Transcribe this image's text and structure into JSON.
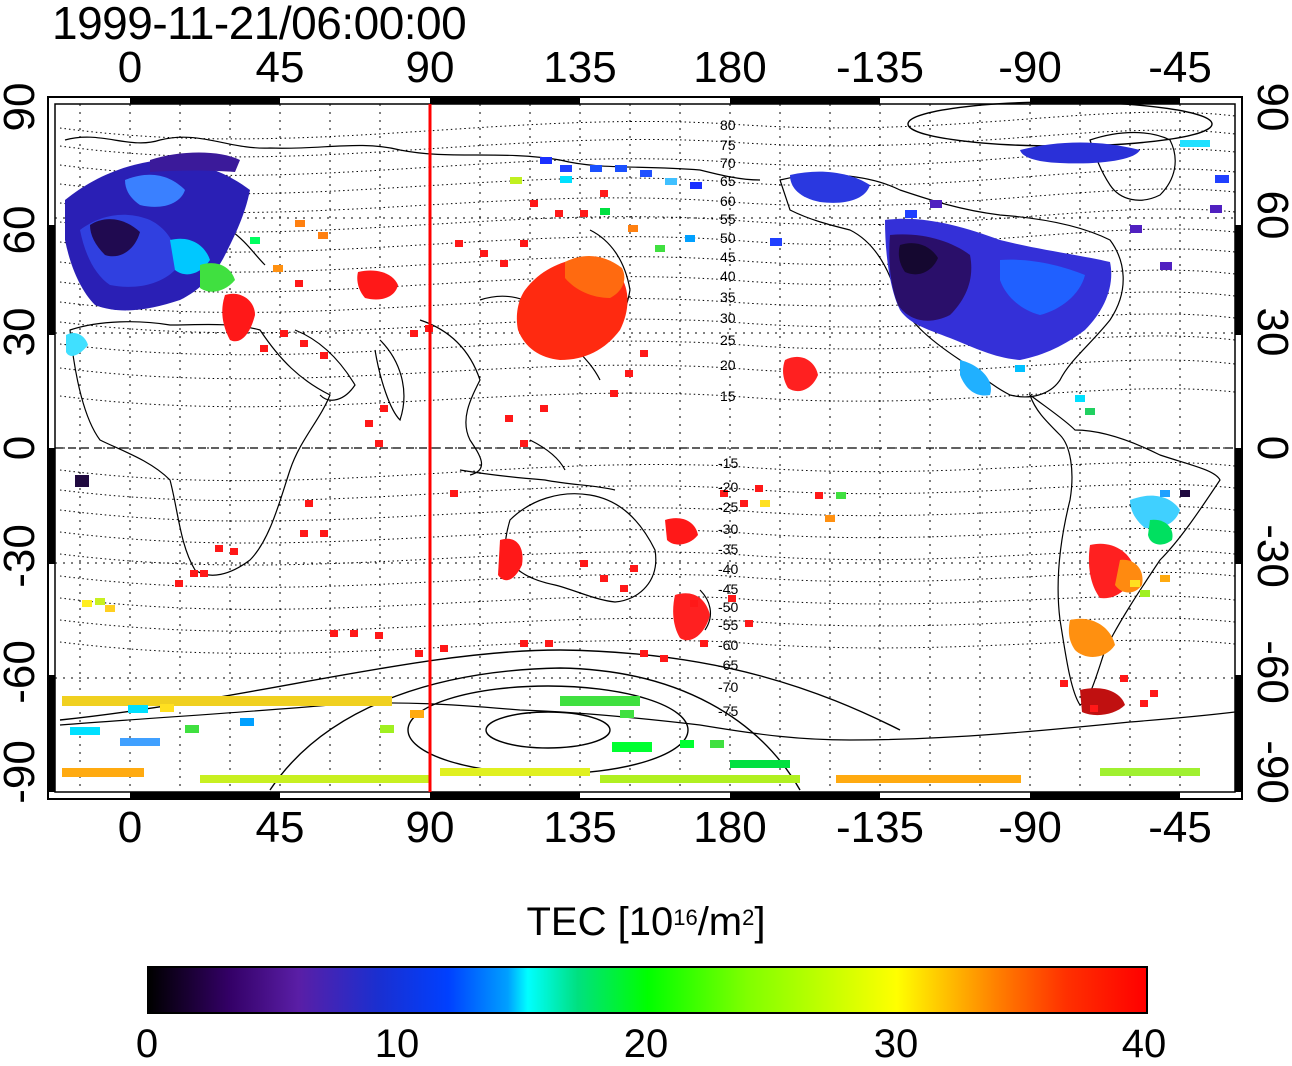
{
  "header": {
    "timestamp": "1999-11-21/06:00:00"
  },
  "map": {
    "top_lon_labels": [
      "0",
      "45",
      "90",
      "135",
      "180",
      "-135",
      "-90",
      "-45"
    ],
    "bottom_lon_labels": [
      "0",
      "45",
      "90",
      "135",
      "180",
      "-135",
      "-90",
      "-45"
    ],
    "left_lat_labels": [
      "90",
      "60",
      "30",
      "0",
      "-30",
      "-60",
      "-90"
    ],
    "right_lat_labels": [
      "90",
      "60",
      "30",
      "0",
      "-30",
      "-60",
      "-90"
    ],
    "contour_labels_north": [
      "80",
      "75",
      "70",
      "65",
      "60",
      "55",
      "50",
      "45",
      "40",
      "35",
      "30",
      "25",
      "20",
      "15"
    ],
    "contour_labels_south": [
      "-15",
      "-20",
      "-25",
      "-30",
      "-35",
      "-40",
      "-45",
      "-50",
      "-55",
      "-60",
      "-65",
      "-70",
      "-75"
    ],
    "marker_line_longitude": 90,
    "marker_color": "#ff0000"
  },
  "colorbar": {
    "title_prefix": "TEC  [10",
    "title_exp1": "16",
    "title_mid": "/m",
    "title_exp2": "2",
    "title_suffix": "]",
    "ticks": [
      "0",
      "10",
      "20",
      "30",
      "40"
    ],
    "range": [
      0,
      40
    ]
  }
}
